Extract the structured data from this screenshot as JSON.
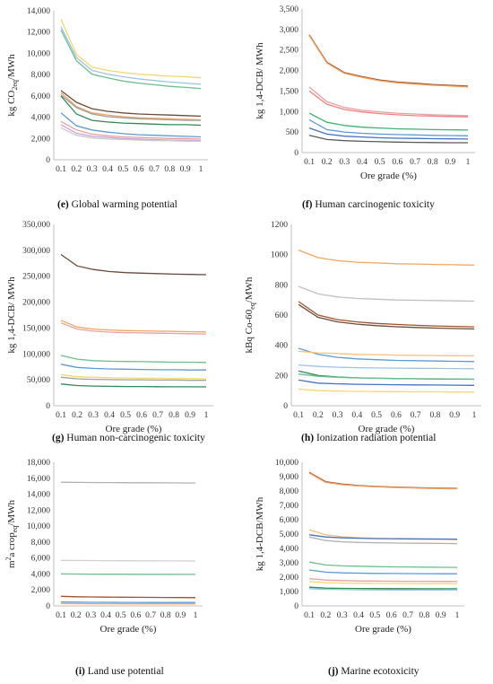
{
  "chart_data": [
    {
      "id": "e",
      "type": "line",
      "caption_letter": "(e)",
      "caption_text": "Global warming potential",
      "ylabel_parts": [
        "kg CO",
        "2eq",
        "/MWh"
      ],
      "xlabel": "",
      "ylim": [
        0,
        14000
      ],
      "yticks": [
        "0",
        "2,000",
        "4,000",
        "6,000",
        "8,000",
        "10,000",
        "12,000",
        "14,000"
      ],
      "x": [
        0.1,
        0.2,
        0.3,
        0.4,
        0.5,
        0.6,
        0.7,
        0.8,
        0.9,
        1
      ],
      "xticks": [
        "0.1",
        "0.2",
        "0.3",
        "0.4",
        "0.5",
        "0.6",
        "0.7",
        "0.8",
        "0.9",
        "1"
      ],
      "series": [
        {
          "color": "#f5d76e",
          "values": [
            13200,
            9900,
            8700,
            8400,
            8200,
            8050,
            7950,
            7850,
            7800,
            7700
          ]
        },
        {
          "color": "#9dc3e6",
          "values": [
            12500,
            9600,
            8400,
            8050,
            7800,
            7600,
            7450,
            7300,
            7200,
            7100
          ]
        },
        {
          "color": "#6dbf8e",
          "values": [
            12200,
            9300,
            8050,
            7700,
            7400,
            7200,
            7050,
            6900,
            6800,
            6700
          ]
        },
        {
          "color": "#6b4a3a",
          "values": [
            6500,
            5400,
            4800,
            4550,
            4400,
            4300,
            4250,
            4200,
            4150,
            4100
          ]
        },
        {
          "color": "#f4a460",
          "values": [
            6300,
            5000,
            4400,
            4200,
            4050,
            3950,
            3900,
            3850,
            3800,
            3750
          ]
        },
        {
          "color": "#a0a0a0",
          "values": [
            6100,
            4900,
            4300,
            4050,
            3950,
            3850,
            3800,
            3750,
            3700,
            3700
          ]
        },
        {
          "color": "#2e8b57",
          "values": [
            6000,
            4300,
            3700,
            3550,
            3450,
            3400,
            3350,
            3300,
            3300,
            3250
          ]
        },
        {
          "color": "#5b9bd5",
          "values": [
            4400,
            3200,
            2800,
            2600,
            2450,
            2350,
            2300,
            2250,
            2200,
            2150
          ]
        },
        {
          "color": "#e8a0a0",
          "values": [
            3600,
            2800,
            2400,
            2250,
            2150,
            2100,
            2050,
            2000,
            2000,
            1950
          ]
        },
        {
          "color": "#c8a0d8",
          "values": [
            3300,
            2500,
            2200,
            2100,
            2000,
            1950,
            1900,
            1850,
            1850,
            1800
          ]
        },
        {
          "color": "#cccccc",
          "values": [
            3000,
            2300,
            2050,
            1950,
            1900,
            1850,
            1800,
            1800,
            1750,
            1750
          ]
        }
      ]
    },
    {
      "id": "f",
      "type": "line",
      "caption_letter": "(f)",
      "caption_text": "Human carcinogenic toxicity",
      "ylabel_parts": [
        "kg 1,4-DCB/ MWh"
      ],
      "xlabel": "Ore grade (%)",
      "ylim": [
        0,
        3500
      ],
      "yticks": [
        "0",
        "500",
        "1,000",
        "1,500",
        "2,000",
        "2,500",
        "3,000",
        "3,500"
      ],
      "x": [
        0.1,
        0.2,
        0.3,
        0.4,
        0.5,
        0.6,
        0.7,
        0.8,
        0.9,
        1
      ],
      "xticks": [
        "0.1",
        "0.2",
        "0.3",
        "0.4",
        "0.5",
        "0.6",
        "0.7",
        "0.8",
        "0.9",
        "1"
      ],
      "series": [
        {
          "color": "#a0522d",
          "values": [
            2870,
            2200,
            1950,
            1850,
            1770,
            1720,
            1690,
            1660,
            1640,
            1620
          ]
        },
        {
          "color": "#f4a460",
          "values": [
            2850,
            2180,
            1930,
            1830,
            1750,
            1700,
            1670,
            1640,
            1620,
            1600
          ]
        },
        {
          "color": "#e8a0a0",
          "values": [
            1600,
            1240,
            1100,
            1030,
            990,
            960,
            940,
            920,
            910,
            900
          ]
        },
        {
          "color": "#f08080",
          "values": [
            1500,
            1180,
            1050,
            990,
            950,
            920,
            900,
            890,
            880,
            870
          ]
        },
        {
          "color": "#3cb371",
          "values": [
            960,
            740,
            660,
            620,
            600,
            580,
            570,
            560,
            555,
            550
          ]
        },
        {
          "color": "#5b9bd5",
          "values": [
            800,
            560,
            500,
            470,
            450,
            440,
            430,
            420,
            415,
            410
          ]
        },
        {
          "color": "#4472c4",
          "values": [
            600,
            450,
            400,
            380,
            360,
            350,
            345,
            340,
            335,
            330
          ]
        },
        {
          "color": "#5a5a5a",
          "values": [
            420,
            320,
            290,
            275,
            265,
            255,
            250,
            245,
            240,
            240
          ]
        }
      ]
    },
    {
      "id": "g",
      "type": "line",
      "caption_letter": "(g)",
      "caption_text": "Human non-carcinogenic toxicity",
      "ylabel_parts": [
        "kg 1,4-DCB/ MWh"
      ],
      "xlabel": "Ore grade (%)",
      "ylim": [
        0,
        350000
      ],
      "yticks": [
        "0",
        "50,000",
        "100,000",
        "150,000",
        "200,000",
        "250,000",
        "300,000",
        "350,000"
      ],
      "x": [
        0.1,
        0.2,
        0.3,
        0.4,
        0.5,
        0.6,
        0.7,
        0.8,
        0.9,
        1
      ],
      "xticks": [
        "0.1",
        "0.2",
        "0.3",
        "0.4",
        "0.5",
        "0.6",
        "0.7",
        "0.8",
        "0.9",
        "1"
      ],
      "series": [
        {
          "color": "#6b4a3a",
          "values": [
            292000,
            270000,
            263000,
            259000,
            257000,
            256000,
            255000,
            254000,
            253500,
            253000
          ]
        },
        {
          "color": "#f4a460",
          "values": [
            165000,
            152000,
            148000,
            146000,
            145000,
            144500,
            144000,
            143500,
            143000,
            142500
          ]
        },
        {
          "color": "#e8a0a0",
          "values": [
            160000,
            148000,
            144000,
            142000,
            141000,
            140500,
            140000,
            139500,
            139000,
            138500
          ]
        },
        {
          "color": "#6dbf8e",
          "values": [
            97000,
            90000,
            87000,
            86000,
            85500,
            85000,
            84500,
            84000,
            84000,
            83500
          ]
        },
        {
          "color": "#5b9bd5",
          "values": [
            80000,
            74000,
            72000,
            71000,
            70500,
            70000,
            69500,
            69500,
            69000,
            69000
          ]
        },
        {
          "color": "#f5d76e",
          "values": [
            60000,
            56000,
            55000,
            54000,
            53500,
            53000,
            53000,
            52500,
            52500,
            52000
          ]
        },
        {
          "color": "#a0a0a0",
          "values": [
            55000,
            52000,
            51000,
            50500,
            50000,
            50000,
            49500,
            49500,
            49000,
            49000
          ]
        },
        {
          "color": "#2e8b57",
          "values": [
            42000,
            39000,
            38000,
            37500,
            37000,
            37000,
            36800,
            36600,
            36500,
            36400
          ]
        }
      ]
    },
    {
      "id": "h",
      "type": "line",
      "caption_letter": "(h)",
      "caption_text": "Ionization radiation potential",
      "ylabel_parts": [
        "kBq Co-60",
        "eq",
        "/MWh"
      ],
      "xlabel": "Ore grade (%)",
      "ylim": [
        0,
        1200
      ],
      "yticks": [
        "0",
        "200",
        "400",
        "600",
        "800",
        "1000",
        "1200"
      ],
      "x": [
        0.1,
        0.2,
        0.3,
        0.4,
        0.5,
        0.6,
        0.7,
        0.8,
        0.9,
        1
      ],
      "xticks": [
        "0.1",
        "0.2",
        "0.3",
        "0.4",
        "0.5",
        "0.6",
        "0.7",
        "0.8",
        "0.9",
        "1"
      ],
      "series": [
        {
          "color": "#f4a460",
          "values": [
            1030,
            980,
            960,
            950,
            945,
            940,
            938,
            935,
            933,
            930
          ]
        },
        {
          "color": "#c0c0c0",
          "values": [
            790,
            740,
            720,
            710,
            705,
            700,
            698,
            696,
            694,
            692
          ]
        },
        {
          "color": "#a0522d",
          "values": [
            690,
            600,
            570,
            555,
            545,
            538,
            532,
            528,
            525,
            522
          ]
        },
        {
          "color": "#6b4a3a",
          "values": [
            670,
            585,
            555,
            540,
            530,
            523,
            518,
            514,
            511,
            508
          ]
        },
        {
          "color": "#5b9bd5",
          "values": [
            380,
            340,
            320,
            310,
            305,
            300,
            298,
            296,
            294,
            292
          ]
        },
        {
          "color": "#f5c27a",
          "values": [
            360,
            350,
            345,
            340,
            338,
            335,
            333,
            332,
            331,
            330
          ]
        },
        {
          "color": "#9dc3e6",
          "values": [
            270,
            260,
            255,
            252,
            250,
            249,
            248,
            247,
            246,
            245
          ]
        },
        {
          "color": "#2e8b57",
          "values": [
            230,
            200,
            190,
            185,
            182,
            180,
            178,
            177,
            176,
            175
          ]
        },
        {
          "color": "#6dbf8e",
          "values": [
            210,
            195,
            188,
            184,
            182,
            180,
            179,
            178,
            177,
            176
          ]
        },
        {
          "color": "#4472c4",
          "values": [
            170,
            150,
            145,
            142,
            140,
            139,
            138,
            137,
            136,
            135
          ]
        },
        {
          "color": "#f5d76e",
          "values": [
            110,
            100,
            97,
            95,
            94,
            93,
            92,
            92,
            91,
            90
          ]
        }
      ]
    },
    {
      "id": "i",
      "type": "line",
      "caption_letter": "(i)",
      "caption_text": "Land use potential",
      "ylabel_parts": [
        "m",
        "2",
        "a crop",
        "eq",
        "/MWh"
      ],
      "xlabel": "Ore grade (%)",
      "ylim": [
        0,
        18000
      ],
      "yticks": [
        "0",
        "2,000",
        "4,000",
        "6,000",
        "8,000",
        "10,000",
        "12,000",
        "14,000",
        "16,000",
        "18,000"
      ],
      "x": [
        0.1,
        0.2,
        0.3,
        0.4,
        0.5,
        0.6,
        0.7,
        0.8,
        0.9,
        1
      ],
      "xticks": [
        "0.1",
        "0.2",
        "0.3",
        "0.4",
        "0.5",
        "0.6",
        "0.7",
        "0.8",
        "0.9",
        "1"
      ],
      "series": [
        {
          "color": "#b0b0b0",
          "values": [
            15500,
            15480,
            15470,
            15460,
            15450,
            15440,
            15430,
            15420,
            15410,
            15400
          ]
        },
        {
          "color": "#d0d0d0",
          "values": [
            5700,
            5690,
            5680,
            5670,
            5660,
            5650,
            5645,
            5640,
            5635,
            5630
          ]
        },
        {
          "color": "#6dbf8e",
          "values": [
            4000,
            3990,
            3980,
            3975,
            3970,
            3965,
            3960,
            3955,
            3950,
            3945
          ]
        },
        {
          "color": "#a0522d",
          "values": [
            1200,
            1150,
            1120,
            1100,
            1090,
            1080,
            1070,
            1060,
            1050,
            1040
          ]
        },
        {
          "color": "#5b9bd5",
          "values": [
            500,
            470,
            455,
            445,
            440,
            435,
            430,
            428,
            426,
            424
          ]
        },
        {
          "color": "#f4a460",
          "values": [
            300,
            280,
            270,
            265,
            262,
            260,
            258,
            256,
            255,
            254
          ]
        }
      ]
    },
    {
      "id": "j",
      "type": "line",
      "caption_letter": "(j)",
      "caption_text": "Marine ecotoxicity",
      "ylabel_parts": [
        "kg 1,4-DCB/MWh"
      ],
      "xlabel": "Ore grade (%)",
      "ylim": [
        0,
        10000
      ],
      "yticks": [
        "0",
        "1,000",
        "2,000",
        "3,000",
        "4,000",
        "5,000",
        "6,000",
        "7,000",
        "8,000",
        "9,000",
        "10,000"
      ],
      "x": [
        0.1,
        0.2,
        0.3,
        0.4,
        0.5,
        0.6,
        0.7,
        0.8,
        0.9,
        1
      ],
      "xticks": [
        "0.1",
        "0.2",
        "0.3",
        "0.4",
        "0.5",
        "0.6",
        "0.7",
        "0.8",
        "0.9",
        "1"
      ],
      "series": [
        {
          "color": "#a0522d",
          "values": [
            9300,
            8650,
            8480,
            8380,
            8320,
            8280,
            8250,
            8220,
            8200,
            8180
          ]
        },
        {
          "color": "#f4a460",
          "values": [
            9250,
            8600,
            8440,
            8350,
            8290,
            8250,
            8220,
            8190,
            8170,
            8150
          ]
        },
        {
          "color": "#f5c27a",
          "values": [
            5300,
            4950,
            4820,
            4750,
            4700,
            4680,
            4660,
            4640,
            4630,
            4620
          ]
        },
        {
          "color": "#4472c4",
          "values": [
            4950,
            4800,
            4740,
            4710,
            4690,
            4680,
            4670,
            4660,
            4655,
            4650
          ]
        },
        {
          "color": "#b0b0b0",
          "values": [
            4800,
            4550,
            4460,
            4420,
            4400,
            4380,
            4370,
            4360,
            4350,
            4340
          ]
        },
        {
          "color": "#6dbf8e",
          "values": [
            3050,
            2850,
            2790,
            2760,
            2740,
            2720,
            2710,
            2700,
            2690,
            2680
          ]
        },
        {
          "color": "#5b9bd5",
          "values": [
            2500,
            2350,
            2300,
            2280,
            2265,
            2255,
            2250,
            2245,
            2240,
            2235
          ]
        },
        {
          "color": "#e8a0a0",
          "values": [
            1900,
            1800,
            1760,
            1740,
            1730,
            1720,
            1715,
            1710,
            1705,
            1700
          ]
        },
        {
          "color": "#f5d76e",
          "values": [
            1700,
            1620,
            1590,
            1575,
            1565,
            1560,
            1555,
            1550,
            1548,
            1545
          ]
        },
        {
          "color": "#2e8b57",
          "values": [
            1300,
            1240,
            1220,
            1210,
            1205,
            1200,
            1198,
            1196,
            1194,
            1192
          ]
        },
        {
          "color": "#9dc3e6",
          "values": [
            1200,
            1150,
            1130,
            1120,
            1115,
            1110,
            1108,
            1106,
            1104,
            1102
          ]
        }
      ]
    }
  ]
}
